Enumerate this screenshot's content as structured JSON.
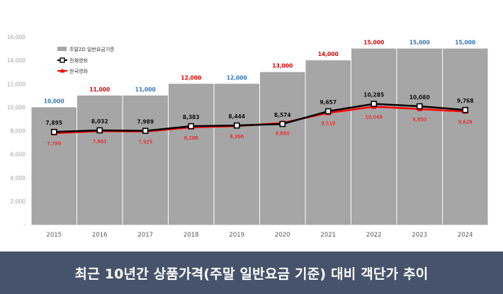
{
  "caption": "최근 10년간 상품가격(주말 일반요금 기준) 대비 객단가 추이",
  "colors": {
    "bar": "#a6a6a6",
    "bar_label_red": "#e00000",
    "bar_label_blue": "#2e75b6",
    "total_line": "#000000",
    "korean_line": "#ff0000",
    "axis_text": "#a0a0a0",
    "caption_bg": "#46536a"
  },
  "chart_data": {
    "type": "bar+line",
    "categories": [
      "2015",
      "2016",
      "2017",
      "2018",
      "2019",
      "2020",
      "2021",
      "2022",
      "2023",
      "2024"
    ],
    "ylim": [
      0,
      16000
    ],
    "yticks": [
      0,
      2000,
      4000,
      6000,
      8000,
      10000,
      12000,
      14000,
      16000
    ],
    "ytick_labels": [
      "-",
      "2,000",
      "4,000",
      "6,000",
      "8,000",
      "10,000",
      "12,000",
      "14,000",
      "16,000"
    ],
    "legend": {
      "placement": "top-left",
      "bar": "주말2D 일반요금기준",
      "total": "전체영화",
      "korean": "한국영화"
    },
    "bars": {
      "name": "주말2D 일반요금기준",
      "values": [
        10000,
        11000,
        11000,
        12000,
        12000,
        13000,
        14000,
        15000,
        15000,
        15000
      ],
      "labels": [
        "10,000",
        "11,000",
        "11,000",
        "12,000",
        "12,000",
        "13,000",
        "14,000",
        "15,000",
        "15,000",
        "15,000"
      ],
      "label_colors": [
        "blue",
        "red",
        "blue",
        "red",
        "blue",
        "red",
        "red",
        "red",
        "blue",
        "blue"
      ]
    },
    "series": [
      {
        "name": "전체영화",
        "values": [
          7895,
          8032,
          7989,
          8383,
          8444,
          8574,
          9657,
          10285,
          10080,
          9768
        ],
        "labels": [
          "7,895",
          "8,032",
          "7,989",
          "8,383",
          "8,444",
          "8,574",
          "9,657",
          "10,285",
          "10,080",
          "9,768"
        ]
      },
      {
        "name": "한국영화",
        "values": [
          7789,
          7961,
          7925,
          8286,
          8396,
          8660,
          9518,
          10049,
          9850,
          9628
        ],
        "labels": [
          "7,789",
          "7,961",
          "7,925",
          "8,286",
          "8,396",
          "8,660",
          "9,518",
          "10,049",
          "9,850",
          "9,628"
        ]
      }
    ]
  }
}
